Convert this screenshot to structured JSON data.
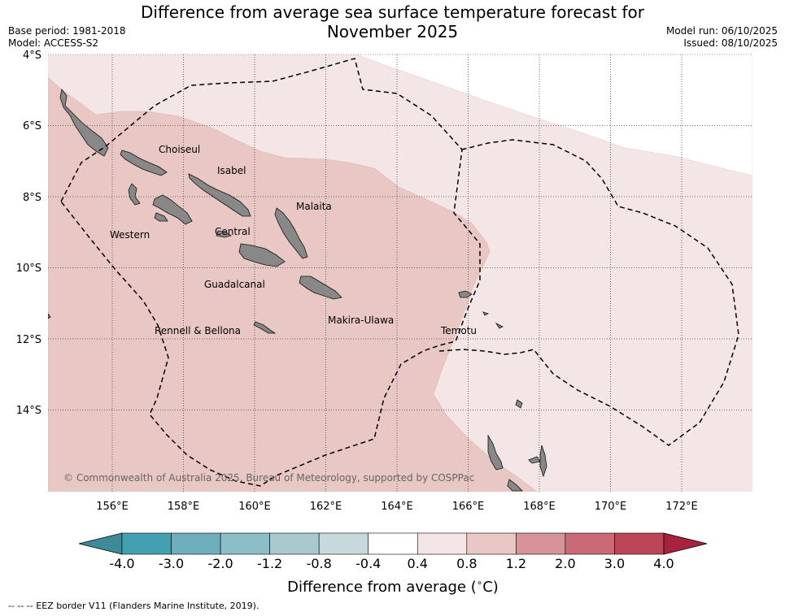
{
  "title_line1": "Difference from average sea surface temperature forecast for",
  "title_line2": "November 2025",
  "base_period": "Base period: 1981-2018",
  "model": "Model: ACCESS-S2",
  "model_run": "Model run: 06/10/2025",
  "issued": "Issued: 08/10/2025",
  "lat_labels": [
    "4°S",
    "6°S",
    "8°S",
    "10°S",
    "12°S",
    "14°S"
  ],
  "lon_labels": [
    "156°E",
    "158°E",
    "160°E",
    "162°E",
    "164°E",
    "166°E",
    "168°E",
    "170°E",
    "172°E"
  ],
  "provinces": [
    "Choiseul",
    "Isabel",
    "Malaita",
    "Western",
    "Central",
    "Guadalcanal",
    "Makira-Ulawa",
    "Rennell & Bellona",
    "Temotu"
  ],
  "copyright": "© Commonwealth of Australia 2025, Bureau of Meteorology, supported by COSPPac",
  "colorbar": {
    "ticks": [
      "-4.0",
      "-3.0",
      "-2.0",
      "-1.2",
      "-0.8",
      "-0.4",
      "0.4",
      "0.8",
      "1.2",
      "2.0",
      "3.0",
      "4.0"
    ],
    "colors": [
      "#42a0b2",
      "#6eaebd",
      "#8dbdc8",
      "#aac9cf",
      "#c8d9dd",
      "#ffffff",
      "#f4e6e6",
      "#e8c7c4",
      "#d8929a",
      "#c96a76",
      "#bc4557"
    ],
    "low_extend_color": "#3f8a99",
    "high_extend_color": "#a8213e",
    "label": "Difference from average ($^\\circ$C)"
  },
  "footnote": "--  --  -- EEZ border V11 (Flanders Marine Institute, 2019).",
  "map_colors": {
    "band_0_4_0_8": "#f4e6e6",
    "band_0_8_1_2": "#e8c7c4",
    "land": "#888888"
  }
}
